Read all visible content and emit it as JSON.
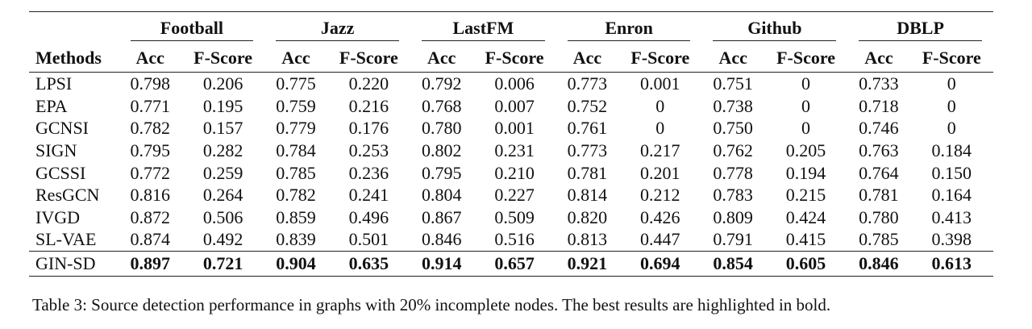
{
  "table": {
    "groups": [
      "Football",
      "Jazz",
      "LastFM",
      "Enron",
      "Github",
      "DBLP"
    ],
    "methods_header": "Methods",
    "sub_headers": [
      "Acc",
      "F-Score"
    ],
    "rows": [
      {
        "method": "LPSI",
        "values": [
          "0.798",
          "0.206",
          "0.775",
          "0.220",
          "0.792",
          "0.006",
          "0.773",
          "0.001",
          "0.751",
          "0",
          "0.733",
          "0"
        ]
      },
      {
        "method": "EPA",
        "values": [
          "0.771",
          "0.195",
          "0.759",
          "0.216",
          "0.768",
          "0.007",
          "0.752",
          "0",
          "0.738",
          "0",
          "0.718",
          "0"
        ]
      },
      {
        "method": "GCNSI",
        "values": [
          "0.782",
          "0.157",
          "0.779",
          "0.176",
          "0.780",
          "0.001",
          "0.761",
          "0",
          "0.750",
          "0",
          "0.746",
          "0"
        ]
      },
      {
        "method": "SIGN",
        "values": [
          "0.795",
          "0.282",
          "0.784",
          "0.253",
          "0.802",
          "0.231",
          "0.773",
          "0.217",
          "0.762",
          "0.205",
          "0.763",
          "0.184"
        ]
      },
      {
        "method": "GCSSI",
        "values": [
          "0.772",
          "0.259",
          "0.785",
          "0.236",
          "0.795",
          "0.210",
          "0.781",
          "0.201",
          "0.778",
          "0.194",
          "0.764",
          "0.150"
        ]
      },
      {
        "method": "ResGCN",
        "values": [
          "0.816",
          "0.264",
          "0.782",
          "0.241",
          "0.804",
          "0.227",
          "0.814",
          "0.212",
          "0.783",
          "0.215",
          "0.781",
          "0.164"
        ]
      },
      {
        "method": "IVGD",
        "values": [
          "0.872",
          "0.506",
          "0.859",
          "0.496",
          "0.867",
          "0.509",
          "0.820",
          "0.426",
          "0.809",
          "0.424",
          "0.780",
          "0.413"
        ]
      },
      {
        "method": "SL-VAE",
        "values": [
          "0.874",
          "0.492",
          "0.839",
          "0.501",
          "0.846",
          "0.516",
          "0.813",
          "0.447",
          "0.791",
          "0.415",
          "0.785",
          "0.398"
        ]
      }
    ],
    "best_row": {
      "method": "GIN-SD",
      "values": [
        "0.897",
        "0.721",
        "0.904",
        "0.635",
        "0.914",
        "0.657",
        "0.921",
        "0.694",
        "0.854",
        "0.605",
        "0.846",
        "0.613"
      ]
    }
  },
  "caption": "Table 3: Source detection performance in graphs with 20% incomplete nodes. The best results are highlighted in bold."
}
